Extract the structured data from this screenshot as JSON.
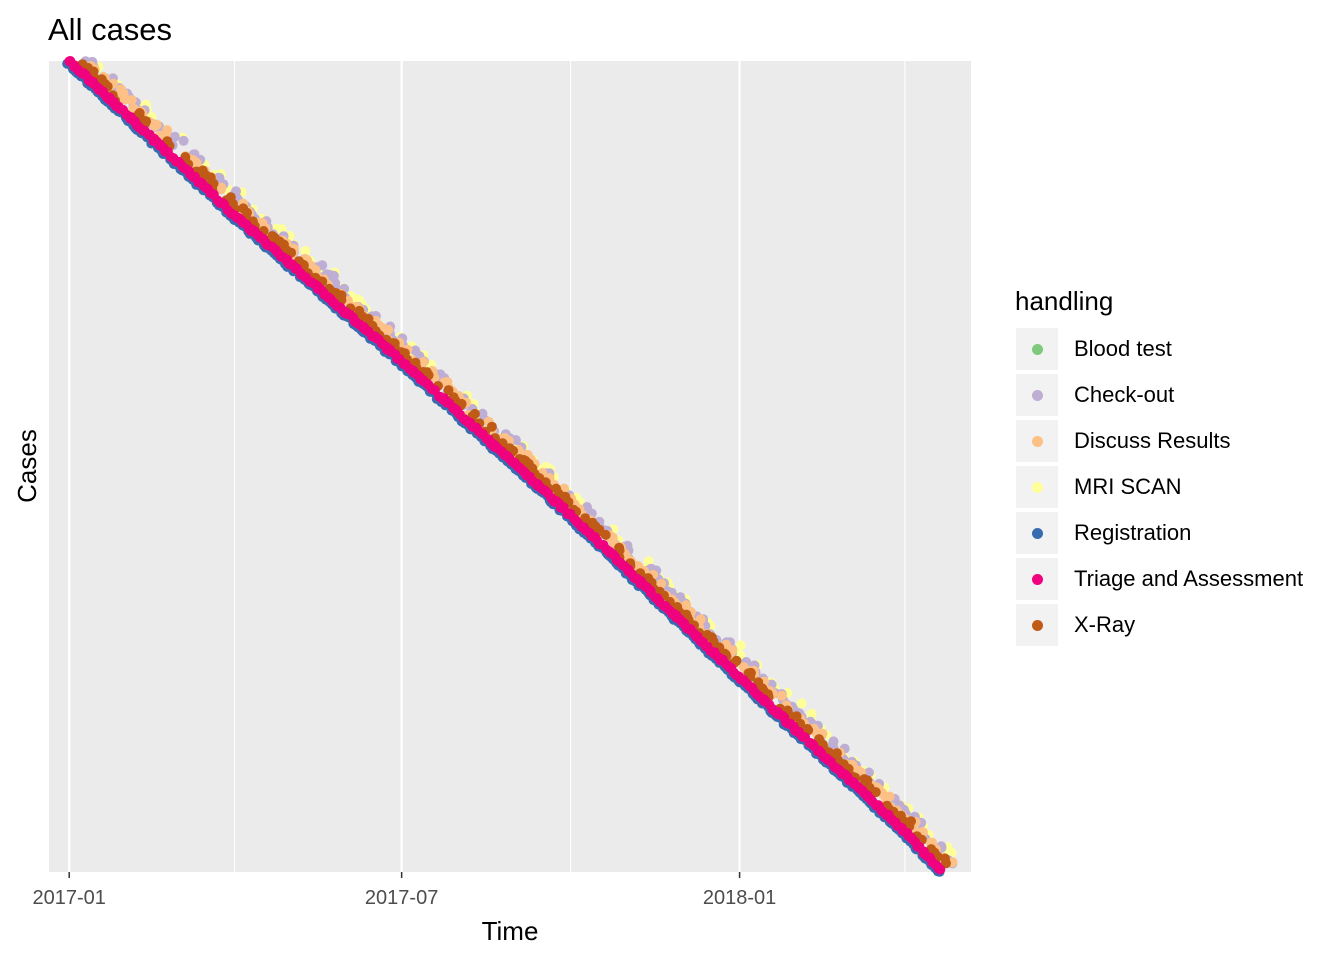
{
  "chart_data": {
    "type": "scatter",
    "title": "All cases",
    "xlabel": "Time",
    "ylabel": "Cases",
    "x_ticks": [
      "2017-01",
      "2017-07",
      "2018-01"
    ],
    "x_range": [
      "2016-12-21",
      "2018-05-07"
    ],
    "y_ticks_shown": false,
    "grid": true,
    "legend": {
      "title": "handling",
      "position": "right",
      "entries": [
        {
          "name": "Blood test",
          "color": "#7fc97f"
        },
        {
          "name": "Check-out",
          "color": "#beaed4"
        },
        {
          "name": "Discuss Results",
          "color": "#fdc086"
        },
        {
          "name": "MRI SCAN",
          "color": "#ffff99"
        },
        {
          "name": "Registration",
          "color": "#386cb0"
        },
        {
          "name": "Triage and Assessment",
          "color": "#f0027f"
        },
        {
          "name": "X-Ray",
          "color": "#bf5b17"
        }
      ]
    },
    "case_progression": {
      "start": "2017-01-01",
      "end": "2018-04-21",
      "trend": "cases arrive steadily; earliest cases at top, latest at bottom",
      "approx_case_time_fraction_checkpoints": [
        {
          "date": "2017-01-01",
          "fraction": 0.0
        },
        {
          "date": "2017-04-01",
          "fraction": 0.19
        },
        {
          "date": "2017-07-01",
          "fraction": 0.37
        },
        {
          "date": "2017-10-01",
          "fraction": 0.56
        },
        {
          "date": "2018-01-01",
          "fraction": 0.76
        },
        {
          "date": "2018-04-01",
          "fraction": 0.95
        },
        {
          "date": "2018-04-21",
          "fraction": 1.0
        }
      ]
    }
  }
}
